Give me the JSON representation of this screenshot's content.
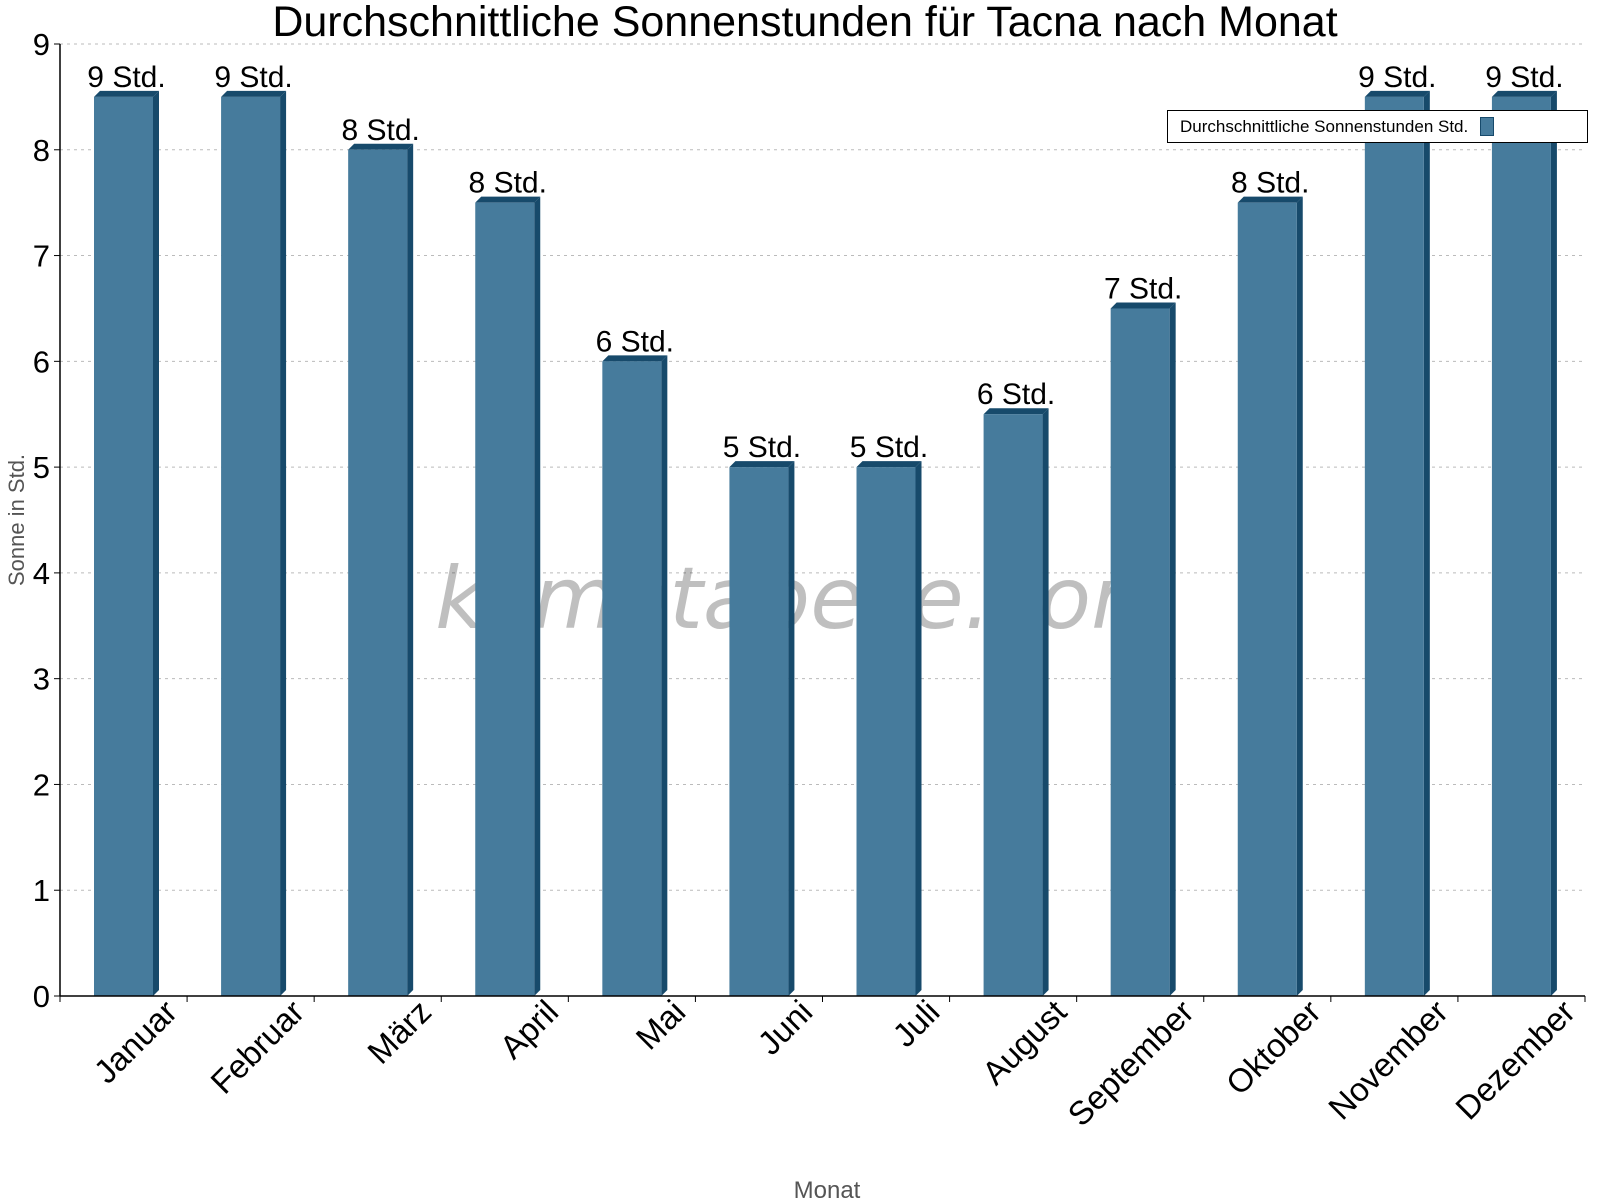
{
  "chart_data": {
    "type": "bar",
    "title": "Durchschnittliche Sonnenstunden für Tacna nach Monat",
    "xlabel": "Monat",
    "ylabel": "Sonne in Std.",
    "ylim": [
      0,
      9
    ],
    "yticks": [
      0,
      1,
      2,
      3,
      4,
      5,
      6,
      7,
      8,
      9
    ],
    "grid": true,
    "legend_position": "top-right",
    "categories": [
      "Januar",
      "Februar",
      "März",
      "April",
      "Mai",
      "Juni",
      "Juli",
      "August",
      "September",
      "Oktober",
      "November",
      "Dezember"
    ],
    "series": [
      {
        "name": "Durchschnittliche Sonnenstunden Std.",
        "values": [
          8.5,
          8.5,
          8,
          7.5,
          6,
          5,
          5,
          5.5,
          6.5,
          7.5,
          8.5,
          8.5
        ],
        "labels": [
          "9 Std.",
          "9 Std.",
          "8 Std.",
          "8 Std.",
          "6 Std.",
          "5 Std.",
          "5 Std.",
          "6 Std.",
          "7 Std.",
          "8 Std.",
          "9 Std.",
          "9 Std."
        ],
        "color": "#467b9c",
        "side_color": "#174a6b"
      }
    ],
    "watermark": "klimatabelle.com"
  }
}
